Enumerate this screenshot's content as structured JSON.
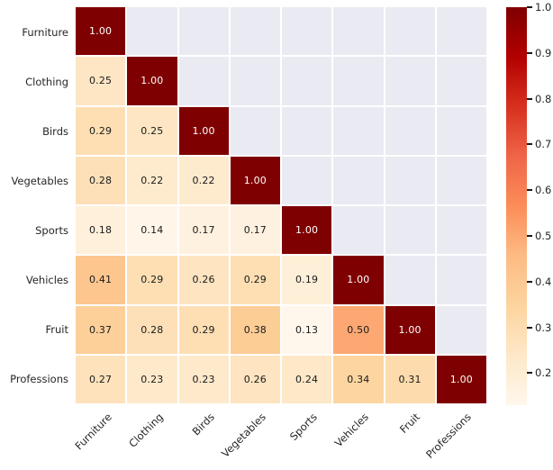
{
  "chart_data": {
    "type": "heatmap",
    "title": "",
    "categories": [
      "Furniture",
      "Clothing",
      "Birds",
      "Vegetables",
      "Sports",
      "Vehicles",
      "Fruit",
      "Professions"
    ],
    "matrix": [
      [
        1.0,
        null,
        null,
        null,
        null,
        null,
        null,
        null
      ],
      [
        0.25,
        1.0,
        null,
        null,
        null,
        null,
        null,
        null
      ],
      [
        0.29,
        0.25,
        1.0,
        null,
        null,
        null,
        null,
        null
      ],
      [
        0.28,
        0.22,
        0.22,
        1.0,
        null,
        null,
        null,
        null
      ],
      [
        0.18,
        0.14,
        0.17,
        0.17,
        1.0,
        null,
        null,
        null
      ],
      [
        0.41,
        0.29,
        0.26,
        0.29,
        0.19,
        1.0,
        null,
        null
      ],
      [
        0.37,
        0.28,
        0.29,
        0.38,
        0.13,
        0.5,
        1.0,
        null
      ],
      [
        0.27,
        0.23,
        0.23,
        0.26,
        0.24,
        0.34,
        0.31,
        1.0
      ]
    ],
    "annotation_decimals": 2,
    "mask": "upper-triangle",
    "vmin": 0.13,
    "vmax": 1.0,
    "colormap": {
      "name": "OrRd",
      "stops": [
        "#fff7ec",
        "#fee8c8",
        "#fdd49e",
        "#fdbb84",
        "#fc8d59",
        "#ef6548",
        "#d7301f",
        "#b30000",
        "#7f0000"
      ]
    },
    "masked_cell_color": "#eaeaf2",
    "annotation_color_dark": "#1a1a1a",
    "annotation_color_light": "#ffffff",
    "grid_line_color": "#ffffff",
    "colorbar": {
      "tick_labels": [
        "1.0",
        "0.9",
        "0.8",
        "0.7",
        "0.6",
        "0.5",
        "0.4",
        "0.3",
        "0.2"
      ],
      "tick_values": [
        1.0,
        0.9,
        0.8,
        0.7,
        0.6,
        0.5,
        0.4,
        0.3,
        0.2
      ]
    }
  }
}
